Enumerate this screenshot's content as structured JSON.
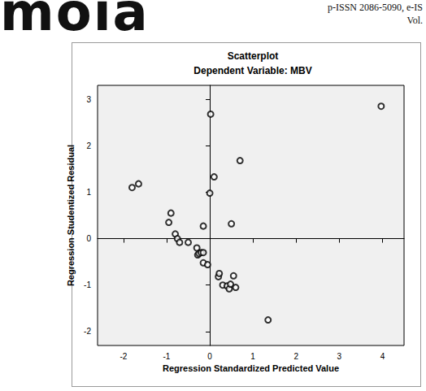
{
  "page": {
    "logo": "moia",
    "issn": "p-ISSN 2086-5090, e-IS",
    "volume": "Vol."
  },
  "chart_data": {
    "type": "scatter",
    "title": "Scatterplot",
    "subtitle": "Dependent Variable: MBV",
    "x_label": "Regression Standardized Predicted Value",
    "y_label": "Regression Studentized Residual",
    "x": [
      -1.8,
      -1.65,
      -0.95,
      -0.9,
      -0.8,
      -0.75,
      -0.7,
      -0.5,
      -0.3,
      -0.28,
      -0.25,
      -0.2,
      -0.15,
      -0.15,
      -0.15,
      -0.05,
      0.0,
      0.02,
      0.1,
      0.2,
      0.22,
      0.3,
      0.4,
      0.45,
      0.48,
      0.5,
      0.55,
      0.6,
      0.7,
      1.35,
      3.97
    ],
    "values": [
      1.1,
      1.18,
      0.35,
      0.55,
      0.1,
      0.0,
      -0.08,
      -0.08,
      -0.2,
      -0.35,
      -0.32,
      -0.3,
      0.27,
      -0.3,
      -0.52,
      -0.56,
      0.98,
      2.68,
      1.33,
      -0.82,
      -0.75,
      -1.0,
      -1.02,
      -1.08,
      -0.98,
      0.32,
      -0.8,
      -1.05,
      1.68,
      -1.75,
      2.85
    ],
    "color": "#000000",
    "marker": "circle_open",
    "xlim": [
      -2.6,
      4.5
    ],
    "xticks": [
      -2,
      -1,
      0,
      1,
      2,
      3,
      4
    ],
    "ylim": [
      -2.3,
      3.3
    ],
    "yticks": [
      -2,
      -1,
      0,
      1,
      2,
      3
    ],
    "grid": false
  }
}
